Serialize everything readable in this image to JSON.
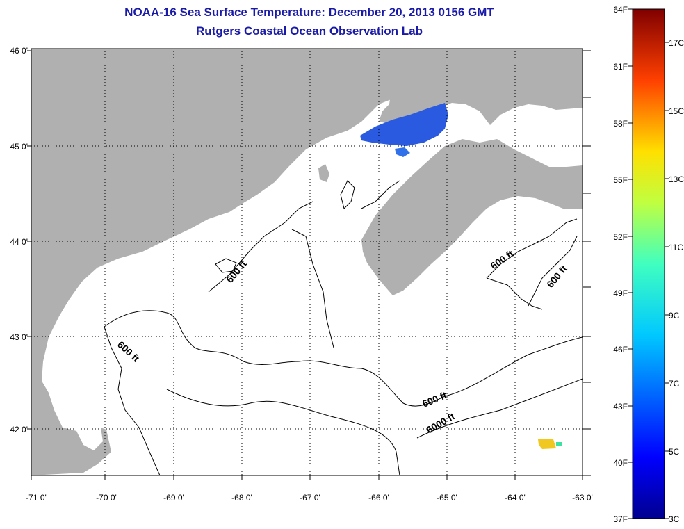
{
  "header": {
    "title": "NOAA-16 Sea Surface Temperature:  December 20, 2013 0156 GMT",
    "subtitle": "Rutgers Coastal Ocean Observation Lab"
  },
  "map": {
    "lat_ticks": [
      "46 0'",
      "45 0'",
      "44 0'",
      "43 0'",
      "42 0'"
    ],
    "lon_ticks": [
      "-71 0'",
      "-70 0'",
      "-69 0'",
      "-68 0'",
      "-67 0'",
      "-66 0'",
      "-65 0'",
      "-64 0'",
      "-63 0'"
    ],
    "contour_labels": [
      "600 ft",
      "600 ft",
      "600 ft",
      "600 ft",
      "600 ft",
      "6000 ft"
    ],
    "colors": {
      "land": "#b0b0b0",
      "water": "#ffffff",
      "sst_cold": "#2a5ae0",
      "sst_warm": "#f0c820"
    }
  },
  "colorbar": {
    "fahrenheit_labels": [
      "64F",
      "61F",
      "58F",
      "55F",
      "52F",
      "49F",
      "46F",
      "43F",
      "40F",
      "37F"
    ],
    "celsius_labels": [
      "17C",
      "15C",
      "13C",
      "11C",
      "9C",
      "7C",
      "5C",
      "3C"
    ]
  }
}
